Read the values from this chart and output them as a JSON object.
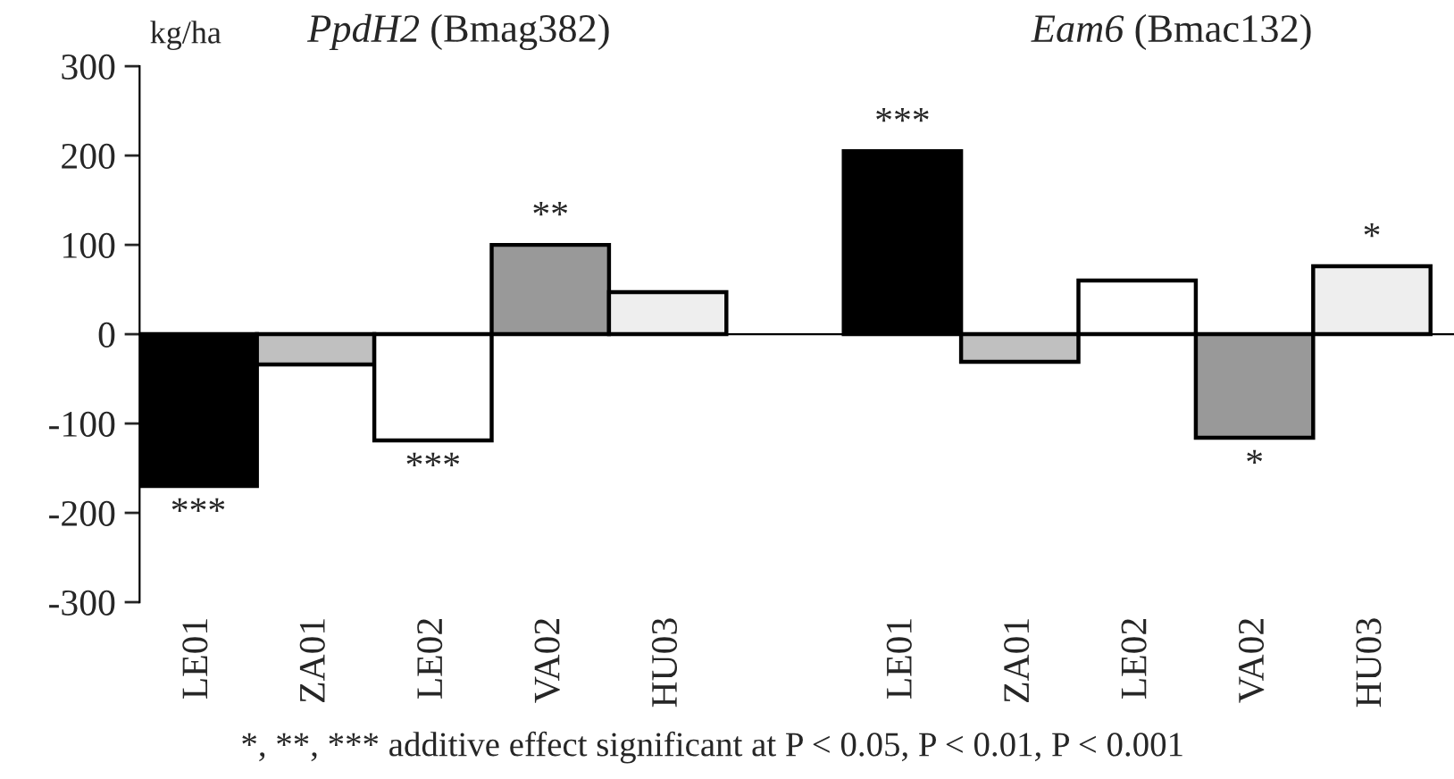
{
  "chart_data": {
    "type": "bar",
    "categories": [
      "LE01",
      "ZA01",
      "LE02",
      "VA02",
      "HU03",
      null,
      "LE01",
      "ZA01",
      "LE02",
      "VA02",
      "HU03"
    ],
    "values": [
      -170,
      -34,
      -119,
      100,
      47,
      null,
      205,
      -31,
      60,
      -116,
      76
    ],
    "colors": [
      "#000000",
      "#c0c0c0",
      "#ffffff",
      "#999999",
      "#eeeeee",
      "#ffffff",
      "#000000",
      "#c0c0c0",
      "#ffffff",
      "#999999",
      "#eeeeee"
    ],
    "value_labels": [
      "***",
      null,
      "***",
      "**",
      null,
      null,
      "***",
      null,
      null,
      "*",
      "*"
    ],
    "ylabel": "kg/ha",
    "ylim": [
      -300,
      300
    ],
    "yticks": [
      -300,
      -200,
      -100,
      0,
      100,
      200,
      300
    ],
    "annotations": [
      "PpdH2 (Bmag382)",
      "Eam6 (Bmac132)",
      "*, **, *** additive effect significant at P < 0.05, P < 0.01, P < 0.001"
    ],
    "legend": false
  }
}
